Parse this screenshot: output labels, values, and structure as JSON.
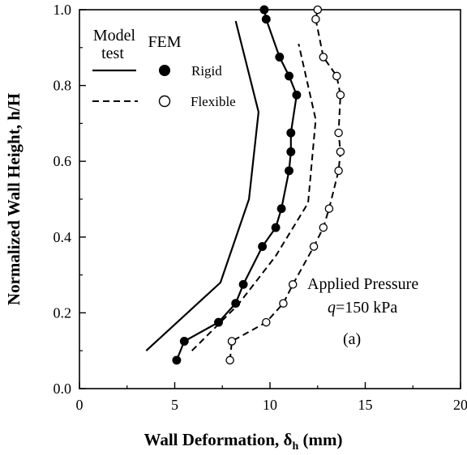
{
  "chart_data": {
    "type": "line",
    "title": "",
    "xlabel": "Wall Deformation, δ",
    "xlabel_subscript": "h",
    "xlabel_unit": "(mm)",
    "ylabel": "Normalized Wall Height, h/H",
    "xlim": [
      0,
      20
    ],
    "ylim": [
      0,
      1
    ],
    "x_ticks": [
      "0",
      "5",
      "10",
      "15",
      "20"
    ],
    "y_ticks": [
      "0.0",
      "0.2",
      "0.4",
      "0.6",
      "0.8",
      "1.0"
    ],
    "grid": false,
    "legend": {
      "placement": "top-left",
      "col_model_header_line1": "Model",
      "col_model_header_line2": "test",
      "col_fem_header": "FEM",
      "rigid_label": "Rigid",
      "flexible_label": "Flexible"
    },
    "annotations": {
      "pressure_line1": "Applied Pressure",
      "pressure_q": "q",
      "pressure_rest": "=150 kPa",
      "panel_label": "(a)"
    },
    "series": [
      {
        "name": "Model test — Rigid",
        "style": "solid",
        "marker": "none",
        "points": [
          [
            3.5,
            0.1
          ],
          [
            7.4,
            0.28
          ],
          [
            8.9,
            0.5
          ],
          [
            9.4,
            0.73
          ],
          [
            8.2,
            0.97
          ]
        ]
      },
      {
        "name": "Model test — Flexible",
        "style": "dashed",
        "marker": "none",
        "points": [
          [
            5.9,
            0.1
          ],
          [
            8.3,
            0.22
          ],
          [
            10.3,
            0.35
          ],
          [
            12.0,
            0.49
          ],
          [
            12.4,
            0.71
          ],
          [
            11.5,
            0.91
          ]
        ]
      },
      {
        "name": "FEM — Rigid",
        "style": "solid",
        "marker": "filled-circle",
        "points": [
          [
            5.1,
            0.075
          ],
          [
            5.5,
            0.125
          ],
          [
            7.3,
            0.175
          ],
          [
            8.2,
            0.225
          ],
          [
            8.6,
            0.275
          ],
          [
            9.6,
            0.375
          ],
          [
            10.3,
            0.425
          ],
          [
            10.6,
            0.475
          ],
          [
            11.0,
            0.575
          ],
          [
            11.1,
            0.625
          ],
          [
            11.1,
            0.675
          ],
          [
            11.4,
            0.775
          ],
          [
            11.0,
            0.825
          ],
          [
            10.5,
            0.875
          ],
          [
            9.8,
            0.975
          ],
          [
            9.7,
            1.0
          ]
        ]
      },
      {
        "name": "FEM — Flexible",
        "style": "dashed",
        "marker": "open-circle",
        "points": [
          [
            7.9,
            0.075
          ],
          [
            8.0,
            0.125
          ],
          [
            9.8,
            0.175
          ],
          [
            10.7,
            0.225
          ],
          [
            11.2,
            0.275
          ],
          [
            12.3,
            0.375
          ],
          [
            12.8,
            0.425
          ],
          [
            13.1,
            0.475
          ],
          [
            13.6,
            0.575
          ],
          [
            13.7,
            0.625
          ],
          [
            13.6,
            0.675
          ],
          [
            13.7,
            0.775
          ],
          [
            13.5,
            0.825
          ],
          [
            12.8,
            0.875
          ],
          [
            12.4,
            0.975
          ],
          [
            12.5,
            1.0
          ]
        ]
      }
    ]
  }
}
